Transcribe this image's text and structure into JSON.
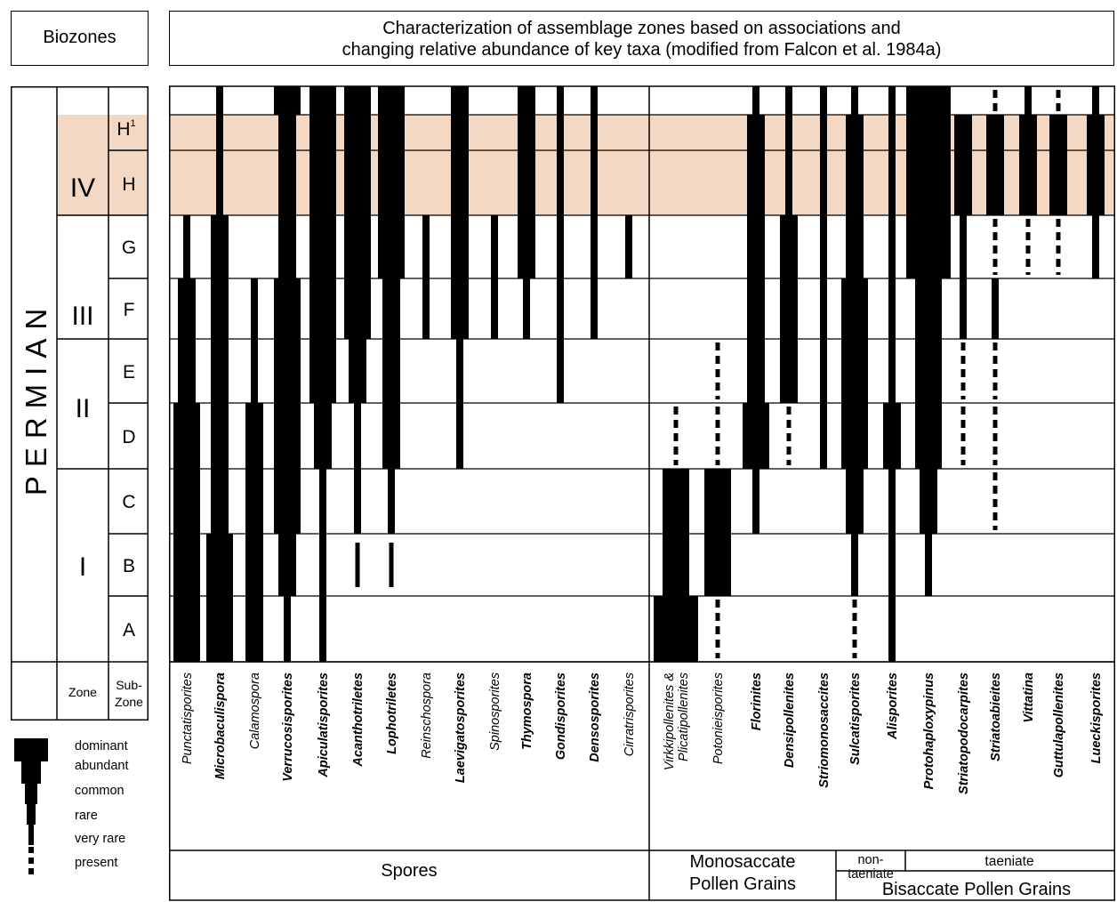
{
  "header": {
    "biozones_label": "Biozones",
    "title_line1": "Characterization of assemblage zones based on associations and",
    "title_line2": "changing relative abundance of key taxa (modified from Falcon et al. 1984a)"
  },
  "left_column": {
    "system": "PERMIAN",
    "zones": [
      {
        "name": "IV",
        "subzones": [
          "H",
          "G"
        ]
      },
      {
        "name": "III",
        "subzones": [
          "F"
        ]
      },
      {
        "name": "II",
        "subzones": [
          "E",
          "D"
        ]
      },
      {
        "name": "I",
        "subzones": [
          "C",
          "B",
          "A"
        ]
      }
    ],
    "subzone_h1": "H",
    "subzone_h1_sup": "1",
    "subzones": [
      "G",
      "F",
      "E",
      "D",
      "C",
      "B",
      "A"
    ],
    "footer_zone": "Zone",
    "footer_subzone_line1": "Sub-",
    "footer_subzone_line2": "Zone"
  },
  "legend": {
    "levels": [
      "dominant",
      "abundant",
      "common",
      "rare",
      "very rare",
      "present"
    ]
  },
  "groups": {
    "spores": "Spores",
    "monosaccate_line1": "Monosaccate",
    "monosaccate_line2": "Pollen Grains",
    "nontaeniate_line1": "non-",
    "nontaeniate_line2": "taeniate",
    "taeniate": "taeniate",
    "bisaccate": "Bisaccate Pollen Grains"
  },
  "chart_data": {
    "type": "range-chart",
    "subzones_top_to_bottom": [
      "H1",
      "H",
      "G",
      "F",
      "E",
      "D",
      "C",
      "B",
      "A"
    ],
    "abundance_scale": [
      "present",
      "very rare",
      "rare",
      "common",
      "abundant",
      "dominant"
    ],
    "highlighted_subzones": [
      "H1",
      "H"
    ],
    "highlight_color": "#f3d8c4",
    "taxa": [
      {
        "name": "Punctatisporites",
        "bold": false,
        "ranges": {
          "G": "rare",
          "F": "common",
          "E": "common",
          "D": "abundant",
          "C": "abundant",
          "B": "abundant",
          "A": "abundant"
        }
      },
      {
        "name": "Microbaculispora",
        "bold": true,
        "ranges": {
          "H1": "rare",
          "H": "rare",
          "G": "common",
          "F": "common",
          "E": "common",
          "D": "common",
          "C": "common",
          "B": "abundant",
          "A": "abundant"
        }
      },
      {
        "name": "Calamospora",
        "bold": false,
        "ranges": {
          "F": "rare",
          "E": "rare",
          "D": "common",
          "C": "common",
          "B": "common",
          "A": "common"
        }
      },
      {
        "name": "Verrucosisporites",
        "bold": true,
        "ranges": {
          "H1": "abundant",
          "H": "common",
          "G": "common",
          "F": "abundant",
          "E": "abundant",
          "D": "abundant",
          "C": "abundant",
          "B": "common",
          "A": "rare"
        }
      },
      {
        "name": "Apiculatisporites",
        "bold": true,
        "ranges": {
          "H1": "abundant",
          "H": "abundant",
          "G": "abundant",
          "F": "abundant",
          "E": "abundant",
          "D": "common",
          "C": "rare",
          "B": "rare",
          "A": "rare"
        }
      },
      {
        "name": "Acanthotriletes",
        "bold": true,
        "ranges": {
          "H1": "abundant",
          "H": "abundant",
          "G": "abundant",
          "F": "abundant",
          "E": "common",
          "D": "rare",
          "C": "rare",
          "B": "very rare"
        }
      },
      {
        "name": "Lophotriletes",
        "bold": true,
        "ranges": {
          "H1": "abundant",
          "H": "abundant",
          "G": "abundant",
          "F": "common",
          "E": "common",
          "D": "common",
          "C": "rare",
          "B": "very rare"
        }
      },
      {
        "name": "Reinschospora",
        "bold": false,
        "ranges": {
          "G": "rare",
          "F": "rare"
        }
      },
      {
        "name": "Laevigatosporites",
        "bold": true,
        "ranges": {
          "H1": "common",
          "H": "common",
          "G": "common",
          "F": "common",
          "E": "rare",
          "D": "rare"
        }
      },
      {
        "name": "Spinosporites",
        "bold": false,
        "ranges": {
          "G": "rare",
          "F": "rare"
        }
      },
      {
        "name": "Thymospora",
        "bold": true,
        "ranges": {
          "H1": "common",
          "H": "common",
          "G": "common",
          "F": "rare"
        }
      },
      {
        "name": "Gondisporites",
        "bold": true,
        "ranges": {
          "H1": "rare",
          "H": "rare",
          "G": "rare",
          "F": "rare",
          "E": "rare"
        }
      },
      {
        "name": "Densosporites",
        "bold": true,
        "ranges": {
          "H1": "rare",
          "H": "rare",
          "G": "rare",
          "F": "rare"
        }
      },
      {
        "name": "Cirratrisporites",
        "bold": false,
        "ranges": {
          "G": "rare"
        }
      },
      {
        "name": "Virkkipollenites & Plicatipollenites",
        "bold": false,
        "ranges": {
          "D": "present",
          "C": "abundant",
          "B": "abundant",
          "A": "dominant"
        }
      },
      {
        "name": "Potonieisporites",
        "bold": false,
        "ranges": {
          "E": "present",
          "D": "present",
          "C": "abundant",
          "B": "abundant",
          "A": "present"
        }
      },
      {
        "name": "Florinites",
        "bold": true,
        "ranges": {
          "H1": "rare",
          "H": "common",
          "G": "common",
          "F": "common",
          "E": "common",
          "D": "abundant",
          "C": "rare"
        }
      },
      {
        "name": "Densipollenites",
        "bold": true,
        "ranges": {
          "H1": "rare",
          "H": "rare",
          "G": "common",
          "F": "common",
          "E": "common",
          "D": "present"
        }
      },
      {
        "name": "Striomonosaccites",
        "bold": true,
        "ranges": {
          "H1": "rare",
          "H": "rare",
          "G": "rare",
          "F": "rare",
          "E": "rare",
          "D": "rare"
        }
      },
      {
        "name": "Sulcatisporites",
        "bold": true,
        "ranges": {
          "H1": "rare",
          "H": "common",
          "G": "common",
          "F": "abundant",
          "E": "abundant",
          "D": "abundant",
          "C": "common",
          "B": "rare",
          "A": "present"
        }
      },
      {
        "name": "Alisporites",
        "bold": true,
        "ranges": {
          "H1": "rare",
          "H": "rare",
          "G": "rare",
          "F": "rare",
          "E": "rare",
          "D": "common",
          "C": "rare",
          "B": "rare",
          "A": "rare"
        }
      },
      {
        "name": "Protohaploxypinus",
        "bold": true,
        "ranges": {
          "H1": "dominant",
          "H": "dominant",
          "G": "dominant",
          "F": "abundant",
          "E": "abundant",
          "D": "abundant",
          "C": "common",
          "B": "rare"
        }
      },
      {
        "name": "Striatopodocarpites",
        "bold": true,
        "ranges": {
          "H": "common",
          "G": "rare",
          "F": "rare",
          "E": "present",
          "D": "present"
        }
      },
      {
        "name": "Striatoabieites",
        "bold": true,
        "ranges": {
          "H1": "present",
          "H": "common",
          "G": "present",
          "F": "rare",
          "E": "present",
          "D": "present",
          "C": "present"
        }
      },
      {
        "name": "Vittatina",
        "bold": true,
        "ranges": {
          "H1": "rare",
          "H": "common",
          "G": "present"
        }
      },
      {
        "name": "Guttulapollenites",
        "bold": true,
        "ranges": {
          "H1": "present",
          "H": "common",
          "G": "present"
        }
      },
      {
        "name": "Lueckisporites",
        "bold": true,
        "ranges": {
          "H1": "rare",
          "H": "common",
          "G": "rare"
        }
      }
    ]
  }
}
